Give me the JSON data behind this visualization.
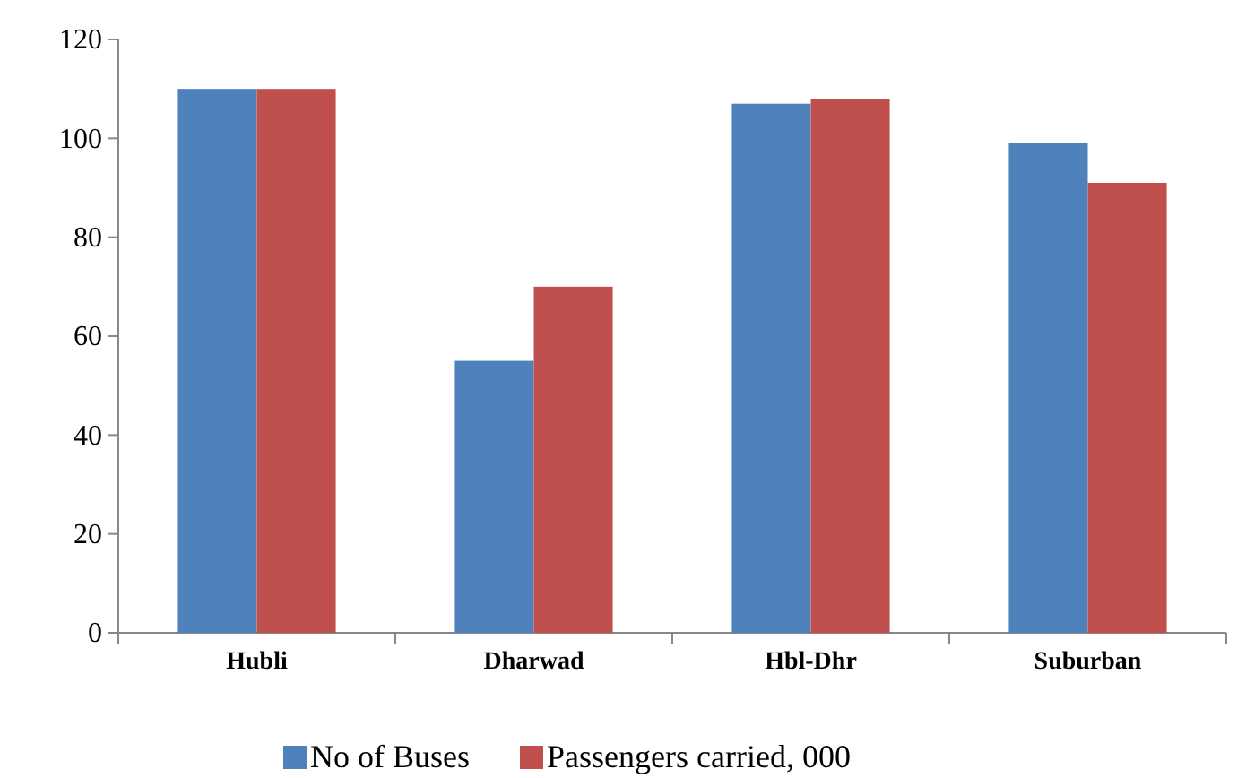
{
  "chart_data": {
    "type": "bar",
    "categories": [
      "Hubli",
      "Dharwad",
      "Hbl-Dhr",
      "Suburban"
    ],
    "series": [
      {
        "name": "No of Buses",
        "color": "#4f81bd",
        "values": [
          110,
          55,
          107,
          99
        ]
      },
      {
        "name": "Passengers carried, 000",
        "color": "#c0504d",
        "values": [
          110,
          70,
          108,
          91
        ]
      }
    ],
    "ylim": [
      0,
      120
    ],
    "yticks": [
      0,
      20,
      40,
      60,
      80,
      100,
      120
    ],
    "grid": false,
    "legend": "bottom"
  }
}
